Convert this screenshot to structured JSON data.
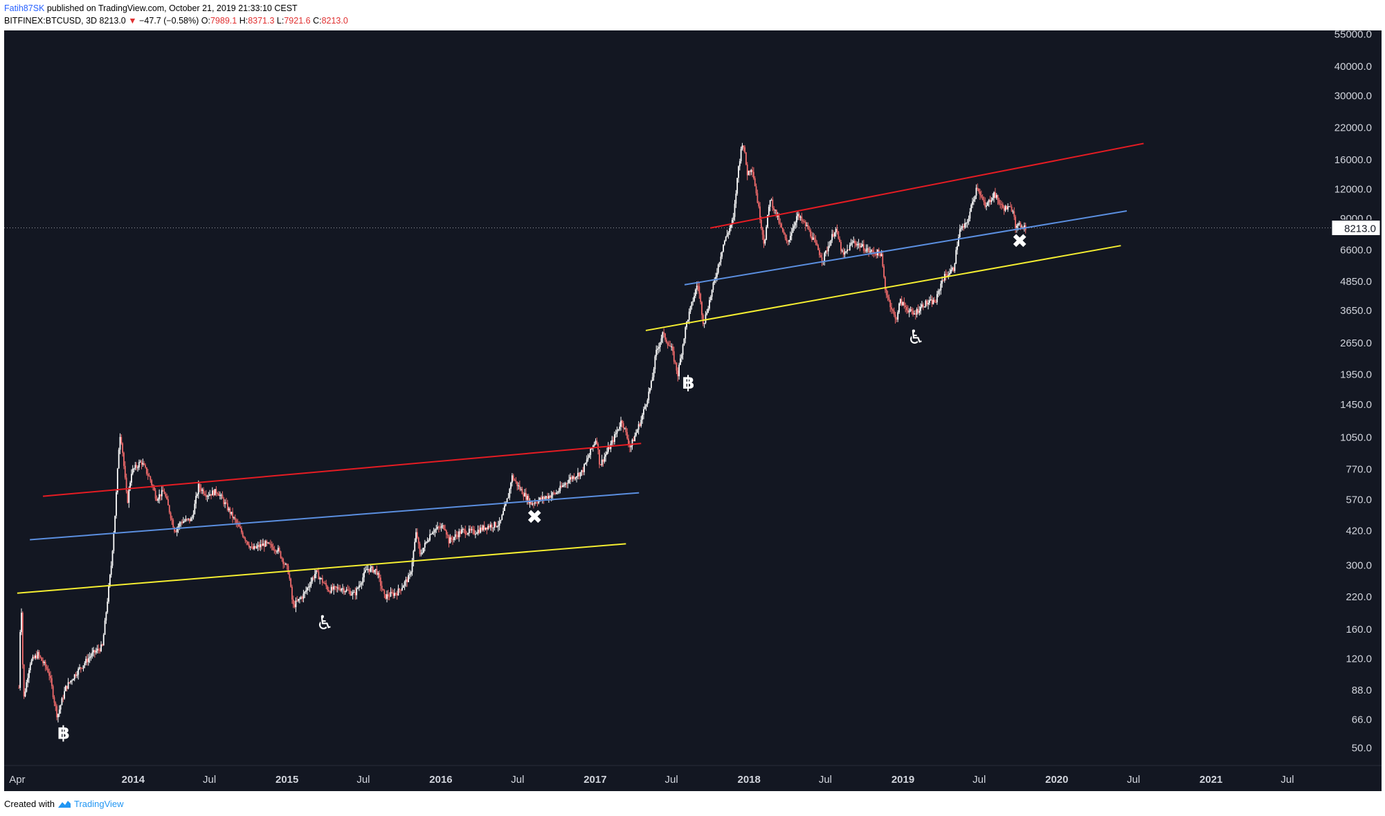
{
  "header": {
    "author": "Fatih87SK",
    "published_text": "published on TradingView.com, October 21, 2019 21:33:10 CEST",
    "symbol_interval": "BITFINEX:BTCUSD, 3D",
    "last": "8213.0",
    "change": "−47.7 (−0.58%)",
    "o_label": "O:",
    "o_value": "7989.1",
    "h_label": "H:",
    "h_value": "8371.3",
    "l_label": "L:",
    "l_value": "7921.6",
    "c_label": "C:",
    "c_value": "8213.0"
  },
  "footer": {
    "created_with": "Created with",
    "brand": "TradingView"
  },
  "colors": {
    "background": "#131722",
    "candle_up": "#ffffff",
    "candle_down": "#f26b6b",
    "line_red": "#e51c23",
    "line_blue": "#5b8fe0",
    "line_yellow": "#f5ee31",
    "axis_text": "#d1d4dc"
  },
  "chart_data": {
    "type": "candlestick",
    "scale": "log",
    "symbol": "BITFINEX:BTCUSD",
    "interval": "3D",
    "last_price_label": "8213.0",
    "xlim": [
      "2013-03-01",
      "2021-10-01"
    ],
    "ylim": [
      42,
      57000
    ],
    "x_ticks": [
      {
        "date": "2013-04-01",
        "label": "Apr"
      },
      {
        "date": "2014-01-01",
        "label": "2014"
      },
      {
        "date": "2014-07-01",
        "label": "Jul"
      },
      {
        "date": "2015-01-01",
        "label": "2015"
      },
      {
        "date": "2015-07-01",
        "label": "Jul"
      },
      {
        "date": "2016-01-01",
        "label": "2016"
      },
      {
        "date": "2016-07-01",
        "label": "Jul"
      },
      {
        "date": "2017-01-01",
        "label": "2017"
      },
      {
        "date": "2017-07-01",
        "label": "Jul"
      },
      {
        "date": "2018-01-01",
        "label": "2018"
      },
      {
        "date": "2018-07-01",
        "label": "Jul"
      },
      {
        "date": "2019-01-01",
        "label": "2019"
      },
      {
        "date": "2019-07-01",
        "label": "Jul"
      },
      {
        "date": "2020-01-01",
        "label": "2020"
      },
      {
        "date": "2020-07-01",
        "label": "Jul"
      },
      {
        "date": "2021-01-01",
        "label": "2021"
      },
      {
        "date": "2021-07-01",
        "label": "Jul"
      }
    ],
    "y_ticks": [
      {
        "value": 55000,
        "label": "55000.0"
      },
      {
        "value": 40000,
        "label": "40000.0"
      },
      {
        "value": 30000,
        "label": "30000.0"
      },
      {
        "value": 22000,
        "label": "22000.0"
      },
      {
        "value": 16000,
        "label": "16000.0"
      },
      {
        "value": 12000,
        "label": "12000.0"
      },
      {
        "value": 9000,
        "label": "9000.0"
      },
      {
        "value": 6600,
        "label": "6600.0"
      },
      {
        "value": 4850,
        "label": "4850.0"
      },
      {
        "value": 3650,
        "label": "3650.0"
      },
      {
        "value": 2650,
        "label": "2650.0"
      },
      {
        "value": 1950,
        "label": "1950.0"
      },
      {
        "value": 1450,
        "label": "1450.0"
      },
      {
        "value": 1050,
        "label": "1050.0"
      },
      {
        "value": 770,
        "label": "770.0"
      },
      {
        "value": 570,
        "label": "570.0"
      },
      {
        "value": 420,
        "label": "420.0"
      },
      {
        "value": 300,
        "label": "300.0"
      },
      {
        "value": 220,
        "label": "220.0"
      },
      {
        "value": 160,
        "label": "160.0"
      },
      {
        "value": 120,
        "label": "120.0"
      },
      {
        "value": 88,
        "label": "88.0"
      },
      {
        "value": 66,
        "label": "66.0"
      },
      {
        "value": 50,
        "label": "50.0"
      }
    ],
    "price_path": [
      [
        "2013-04-05",
        90
      ],
      [
        "2013-04-10",
        230
      ],
      [
        "2013-04-16",
        80
      ],
      [
        "2013-05-01",
        115
      ],
      [
        "2013-05-20",
        125
      ],
      [
        "2013-06-15",
        105
      ],
      [
        "2013-07-05",
        68
      ],
      [
        "2013-07-25",
        90
      ],
      [
        "2013-08-20",
        105
      ],
      [
        "2013-09-25",
        125
      ],
      [
        "2013-10-20",
        135
      ],
      [
        "2013-11-10",
        300
      ],
      [
        "2013-11-20",
        520
      ],
      [
        "2013-11-30",
        1100
      ],
      [
        "2013-12-05",
        1000
      ],
      [
        "2013-12-18",
        550
      ],
      [
        "2013-12-28",
        750
      ],
      [
        "2014-01-20",
        830
      ],
      [
        "2014-02-10",
        700
      ],
      [
        "2014-02-25",
        580
      ],
      [
        "2014-03-15",
        620
      ],
      [
        "2014-04-10",
        420
      ],
      [
        "2014-04-25",
        460
      ],
      [
        "2014-05-20",
        470
      ],
      [
        "2014-06-05",
        650
      ],
      [
        "2014-06-25",
        600
      ],
      [
        "2014-07-20",
        620
      ],
      [
        "2014-08-20",
        500
      ],
      [
        "2014-09-20",
        400
      ],
      [
        "2014-10-10",
        350
      ],
      [
        "2014-11-10",
        370
      ],
      [
        "2014-12-10",
        350
      ],
      [
        "2015-01-05",
        280
      ],
      [
        "2015-01-15",
        200
      ],
      [
        "2015-02-10",
        225
      ],
      [
        "2015-03-10",
        280
      ],
      [
        "2015-04-10",
        235
      ],
      [
        "2015-05-10",
        240
      ],
      [
        "2015-06-10",
        225
      ],
      [
        "2015-07-10",
        290
      ],
      [
        "2015-08-01",
        285
      ],
      [
        "2015-08-20",
        220
      ],
      [
        "2015-09-20",
        230
      ],
      [
        "2015-10-20",
        270
      ],
      [
        "2015-11-04",
        420
      ],
      [
        "2015-11-12",
        330
      ],
      [
        "2015-12-10",
        420
      ],
      [
        "2016-01-10",
        440
      ],
      [
        "2016-01-20",
        380
      ],
      [
        "2016-02-20",
        420
      ],
      [
        "2016-03-20",
        415
      ],
      [
        "2016-04-20",
        440
      ],
      [
        "2016-05-20",
        450
      ],
      [
        "2016-06-10",
        600
      ],
      [
        "2016-06-17",
        720
      ],
      [
        "2016-07-05",
        640
      ],
      [
        "2016-08-02",
        550
      ],
      [
        "2016-09-01",
        580
      ],
      [
        "2016-10-01",
        610
      ],
      [
        "2016-11-01",
        700
      ],
      [
        "2016-12-01",
        750
      ],
      [
        "2017-01-04",
        1050
      ],
      [
        "2017-01-12",
        800
      ],
      [
        "2017-02-10",
        1000
      ],
      [
        "2017-03-05",
        1250
      ],
      [
        "2017-03-25",
        950
      ],
      [
        "2017-04-20",
        1250
      ],
      [
        "2017-05-15",
        1800
      ],
      [
        "2017-05-25",
        2400
      ],
      [
        "2017-06-10",
        2900
      ],
      [
        "2017-07-01",
        2500
      ],
      [
        "2017-07-16",
        1950
      ],
      [
        "2017-08-05",
        3200
      ],
      [
        "2017-08-25",
        4300
      ],
      [
        "2017-09-01",
        4800
      ],
      [
        "2017-09-15",
        3200
      ],
      [
        "2017-10-10",
        4800
      ],
      [
        "2017-11-01",
        7000
      ],
      [
        "2017-11-25",
        9000
      ],
      [
        "2017-12-07",
        15000
      ],
      [
        "2017-12-17",
        19500
      ],
      [
        "2017-12-28",
        14000
      ],
      [
        "2018-01-08",
        15000
      ],
      [
        "2018-01-20",
        11000
      ],
      [
        "2018-02-06",
        7000
      ],
      [
        "2018-02-20",
        11000
      ],
      [
        "2018-03-10",
        9000
      ],
      [
        "2018-04-01",
        7000
      ],
      [
        "2018-04-25",
        9300
      ],
      [
        "2018-05-20",
        8200
      ],
      [
        "2018-06-25",
        6000
      ],
      [
        "2018-07-25",
        8200
      ],
      [
        "2018-08-12",
        6200
      ],
      [
        "2018-09-05",
        7200
      ],
      [
        "2018-10-15",
        6500
      ],
      [
        "2018-11-10",
        6400
      ],
      [
        "2018-11-20",
        4500
      ],
      [
        "2018-12-15",
        3300
      ],
      [
        "2018-12-25",
        4000
      ],
      [
        "2019-01-25",
        3500
      ],
      [
        "2019-02-20",
        3900
      ],
      [
        "2019-03-20",
        4000
      ],
      [
        "2019-04-05",
        5000
      ],
      [
        "2019-05-01",
        5500
      ],
      [
        "2019-05-15",
        8000
      ],
      [
        "2019-06-01",
        8500
      ],
      [
        "2019-06-26",
        12500
      ],
      [
        "2019-07-15",
        10000
      ],
      [
        "2019-08-05",
        11500
      ],
      [
        "2019-08-25",
        10000
      ],
      [
        "2019-09-20",
        9900
      ],
      [
        "2019-09-26",
        8200
      ],
      [
        "2019-10-10",
        8500
      ],
      [
        "2019-10-21",
        8213
      ]
    ],
    "trendlines": [
      {
        "color": "red",
        "p1": [
          "2013-06-01",
          590
        ],
        "p2": [
          "2017-04-20",
          990
        ]
      },
      {
        "color": "blue",
        "p1": [
          "2013-05-01",
          385
        ],
        "p2": [
          "2017-04-15",
          610
        ]
      },
      {
        "color": "yellow",
        "p1": [
          "2013-04-01",
          228
        ],
        "p2": [
          "2017-03-15",
          370
        ]
      },
      {
        "color": "red",
        "p1": [
          "2017-10-01",
          8200
        ],
        "p2": [
          "2020-07-25",
          18800
        ]
      },
      {
        "color": "blue",
        "p1": [
          "2017-08-01",
          4700
        ],
        "p2": [
          "2020-06-15",
          9700
        ]
      },
      {
        "color": "yellow",
        "p1": [
          "2017-05-01",
          3000
        ],
        "p2": [
          "2020-06-01",
          6900
        ]
      }
    ],
    "annotations": [
      {
        "type": "bitcoin",
        "date": "2013-07-20",
        "price": 58,
        "text": "฿"
      },
      {
        "type": "wheelchair",
        "date": "2015-04-01",
        "price": 170,
        "text": "♿"
      },
      {
        "type": "x-mark",
        "date": "2016-08-10",
        "price": 480,
        "text": "✖"
      },
      {
        "type": "bitcoin",
        "date": "2017-08-10",
        "price": 1800,
        "text": "฿"
      },
      {
        "type": "wheelchair",
        "date": "2019-02-01",
        "price": 2800,
        "text": "♿"
      },
      {
        "type": "x-mark",
        "date": "2019-10-05",
        "price": 7200,
        "text": "✖"
      }
    ]
  }
}
